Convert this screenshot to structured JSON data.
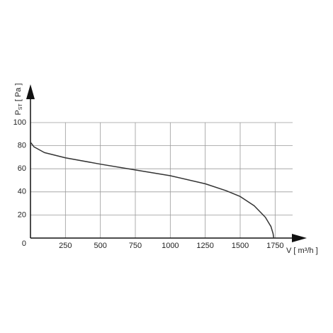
{
  "chart_data": {
    "type": "line",
    "y_label": {
      "symbol": "P",
      "subscript": "ST",
      "unit": "[ Pa ]"
    },
    "x_label": {
      "symbol": "V",
      "unit": "[ m³/h ]"
    },
    "xlim": [
      0,
      1875
    ],
    "ylim": [
      0,
      100
    ],
    "xticks": [
      250,
      500,
      750,
      1000,
      1250,
      1500,
      1750
    ],
    "yticks": [
      0,
      20,
      40,
      60,
      80,
      100
    ],
    "grid": true,
    "series": [
      {
        "color": "#333333",
        "x": [
          0,
          25,
          100,
          250,
          500,
          750,
          1000,
          1250,
          1400,
          1500,
          1600,
          1680,
          1720,
          1735,
          1740
        ],
        "values": [
          83,
          79,
          74,
          69.5,
          64,
          59,
          54,
          47,
          41,
          36,
          28,
          18,
          10,
          4,
          0
        ]
      }
    ]
  }
}
